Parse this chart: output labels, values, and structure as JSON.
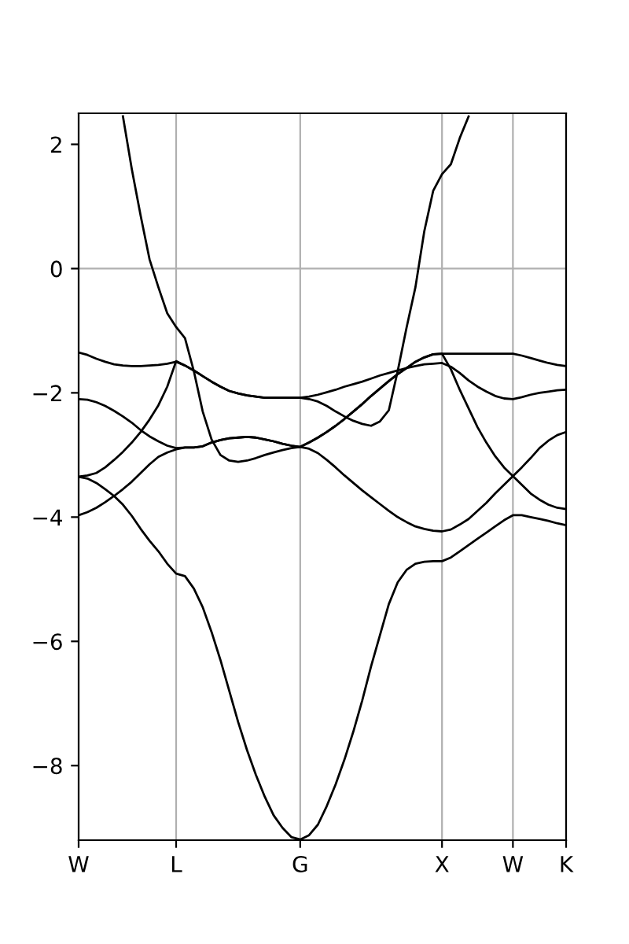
{
  "chart_data": {
    "type": "line",
    "categories": [
      "W",
      null,
      null,
      null,
      null,
      null,
      null,
      null,
      null,
      null,
      null,
      "L",
      null,
      null,
      null,
      null,
      null,
      null,
      null,
      null,
      null,
      null,
      null,
      null,
      null,
      "G",
      null,
      null,
      null,
      null,
      null,
      null,
      null,
      null,
      null,
      null,
      null,
      null,
      null,
      null,
      null,
      "X",
      null,
      null,
      null,
      null,
      null,
      null,
      null,
      "W",
      null,
      null,
      null,
      null,
      null,
      "K"
    ],
    "ylim": [
      -9.2,
      2.5
    ],
    "yticks": [
      {
        "value": -8,
        "label": "−8"
      },
      {
        "value": -6,
        "label": "−6"
      },
      {
        "value": -4,
        "label": "−4"
      },
      {
        "value": -2,
        "label": "−2"
      },
      0,
      2
    ],
    "grid": "x",
    "ref_lines": [
      {
        "axis": "y",
        "value": 0,
        "color": "#b0b0b0"
      }
    ],
    "series": [
      {
        "color": "#000000",
        "values": [
          -3.35,
          -3.38,
          -3.45,
          -3.55,
          -3.66,
          -3.8,
          -3.98,
          -4.19,
          -4.38,
          -4.55,
          -4.75,
          -4.91,
          -4.95,
          -5.15,
          -5.45,
          -5.85,
          -6.3,
          -6.8,
          -7.3,
          -7.75,
          -8.15,
          -8.5,
          -8.8,
          -9.0,
          -9.15,
          -9.19,
          -9.12,
          -8.95,
          -8.65,
          -8.3,
          -7.9,
          -7.45,
          -6.95,
          -6.4,
          -5.9,
          -5.4,
          -5.05,
          -4.85,
          -4.75,
          -4.72,
          -4.71,
          -4.71,
          -4.65,
          -4.55,
          -4.45,
          -4.35,
          -4.25,
          -4.15,
          -4.05,
          -3.97,
          -3.97,
          -4.0,
          -4.03,
          -4.06,
          -4.1,
          -4.13
        ]
      },
      {
        "color": "#000000",
        "values": [
          -3.97,
          -3.92,
          -3.85,
          -3.76,
          -3.66,
          -3.55,
          -3.43,
          -3.29,
          -3.15,
          -3.03,
          -2.96,
          -2.91,
          -2.88,
          -2.88,
          -2.86,
          -2.8,
          -2.76,
          -2.73,
          -2.72,
          -2.71,
          -2.72,
          -2.75,
          -2.78,
          -2.82,
          -2.85,
          -2.87,
          -2.9,
          -2.97,
          -3.08,
          -3.2,
          -3.33,
          -3.45,
          -3.57,
          -3.68,
          -3.79,
          -3.9,
          -4.0,
          -4.08,
          -4.15,
          -4.19,
          -4.22,
          -4.23,
          -4.2,
          -4.12,
          -4.03,
          -3.9,
          -3.77,
          -3.62,
          -3.48,
          -3.34,
          -3.2,
          -3.05,
          -2.89,
          -2.77,
          -2.68,
          -2.63
        ]
      },
      {
        "color": "#000000",
        "values": [
          -2.1,
          -2.11,
          -2.15,
          -2.21,
          -2.29,
          -2.38,
          -2.48,
          -2.6,
          -2.7,
          -2.78,
          -2.85,
          -2.89,
          -2.88,
          -2.88,
          -2.86,
          -2.8,
          -2.76,
          -2.73,
          -2.72,
          -2.71,
          -2.72,
          -2.75,
          -2.78,
          -2.82,
          -2.85,
          -2.87,
          -2.8,
          -2.72,
          -2.63,
          -2.53,
          -2.42,
          -2.3,
          -2.18,
          -2.05,
          -1.93,
          -1.81,
          -1.7,
          -1.6,
          -1.5,
          -1.43,
          -1.38,
          -1.37,
          -1.62,
          -1.95,
          -2.25,
          -2.55,
          -2.8,
          -3.02,
          -3.2,
          -3.34,
          -3.48,
          -3.62,
          -3.72,
          -3.8,
          -3.85,
          -3.87
        ]
      },
      {
        "color": "#000000",
        "values": [
          null,
          null,
          null,
          null,
          null,
          2.45,
          1.6,
          0.85,
          0.15,
          -0.3,
          -0.72,
          -0.94,
          -1.12,
          -1.65,
          -2.3,
          -2.75,
          -3.0,
          -3.09,
          -3.11,
          -3.09,
          -3.05,
          -3.0,
          -2.96,
          -2.92,
          -2.89,
          -2.87,
          -2.8,
          -2.72,
          -2.63,
          -2.53,
          -2.42,
          -2.3,
          -2.18,
          -2.05,
          -1.93,
          -1.81,
          -1.7,
          -1.6,
          -1.5,
          -1.43,
          -1.38,
          -1.37,
          -1.37,
          -1.37,
          -1.37,
          -1.37,
          -1.37,
          -1.37,
          -1.37,
          -1.37,
          -1.4,
          -1.44,
          -1.48,
          -1.52,
          -1.55,
          -1.57
        ]
      },
      {
        "color": "#000000",
        "values": [
          -3.35,
          -3.33,
          -3.29,
          -3.2,
          -3.08,
          -2.95,
          -2.8,
          -2.63,
          -2.43,
          -2.2,
          -1.9,
          -1.49,
          -1.56,
          -1.64,
          -1.73,
          -1.82,
          -1.9,
          -1.97,
          -2.01,
          -2.04,
          -2.06,
          -2.08,
          -2.08,
          -2.08,
          -2.08,
          -2.08,
          -2.06,
          -2.03,
          -1.99,
          -1.95,
          -1.9,
          -1.86,
          -1.82,
          -1.77,
          -1.72,
          -1.68,
          -1.64,
          -1.6,
          -1.57,
          -1.54,
          -1.53,
          -1.52,
          -1.58,
          -1.68,
          -1.8,
          -1.9,
          -1.98,
          -2.05,
          -2.09,
          -2.1,
          -2.07,
          -2.03,
          -2.0,
          -1.98,
          -1.96,
          -1.95
        ]
      },
      {
        "color": "#000000",
        "values": [
          -1.35,
          -1.39,
          -1.45,
          -1.5,
          -1.54,
          -1.56,
          -1.57,
          -1.57,
          -1.56,
          -1.55,
          -1.53,
          -1.5,
          -1.56,
          -1.64,
          -1.73,
          -1.82,
          -1.9,
          -1.97,
          -2.01,
          -2.04,
          -2.06,
          -2.08,
          -2.08,
          -2.08,
          -2.08,
          -2.08,
          -2.1,
          -2.14,
          -2.21,
          -2.3,
          -2.38,
          -2.45,
          -2.5,
          -2.53,
          -2.46,
          -2.28,
          -1.65,
          -0.95,
          -0.3,
          0.6,
          1.25,
          1.52,
          1.68,
          2.1,
          2.45,
          null,
          null,
          null,
          null,
          null,
          null,
          null,
          null,
          null,
          null,
          null
        ]
      }
    ]
  }
}
